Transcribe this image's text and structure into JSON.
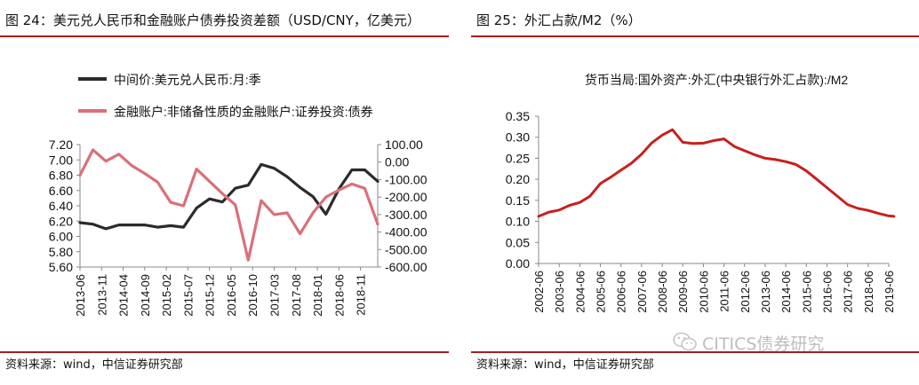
{
  "left_panel": {
    "title": "图 24：美元兑人民币和金融账户债券投资差额（USD/CNY，亿美元）",
    "source": "资料来源：wind，中信证券研究部"
  },
  "right_panel": {
    "title": "图 25：外汇占款/M2（%）",
    "source": "资料来源：wind，中信证券研究部"
  },
  "watermark": {
    "text": "CITICS债券研究",
    "icon": "wechat-icon"
  },
  "colors": {
    "black_series": "#2b2b2b",
    "pink_series": "#d9707a",
    "red_series": "#c8201e",
    "rule": "#a61e1e"
  },
  "chart_data": [
    {
      "type": "line",
      "x_tick_labels": [
        "2013-06",
        "2013-11",
        "2014-04",
        "2014-09",
        "2015-02",
        "2015-07",
        "2015-12",
        "2016-05",
        "2016-10",
        "2017-03",
        "2017-08",
        "2018-01",
        "2018-06",
        "2018-11"
      ],
      "y_left_ticks": [
        "7.20",
        "7.00",
        "6.80",
        "6.60",
        "6.40",
        "6.20",
        "6.00",
        "5.80",
        "5.60"
      ],
      "y_right_ticks": [
        "100.00",
        "0.00",
        "-100.00",
        "-200.00",
        "-300.00",
        "-400.00",
        "-500.00",
        "-600.00"
      ],
      "ylim_left": [
        5.6,
        7.2
      ],
      "ylim_right": [
        -600,
        100
      ],
      "legend_position": "top-left",
      "series": [
        {
          "name": "中间价:美元兑人民币:月:季",
          "axis": "left",
          "color": "#2b2b2b",
          "points": [
            [
              "2013-06",
              6.18
            ],
            [
              "2013-09",
              6.16
            ],
            [
              "2013-12",
              6.1
            ],
            [
              "2014-03",
              6.15
            ],
            [
              "2014-06",
              6.15
            ],
            [
              "2014-09",
              6.15
            ],
            [
              "2014-12",
              6.12
            ],
            [
              "2015-03",
              6.14
            ],
            [
              "2015-06",
              6.12
            ],
            [
              "2015-09",
              6.37
            ],
            [
              "2015-12",
              6.49
            ],
            [
              "2016-03",
              6.45
            ],
            [
              "2016-06",
              6.63
            ],
            [
              "2016-09",
              6.67
            ],
            [
              "2016-12",
              6.94
            ],
            [
              "2017-03",
              6.89
            ],
            [
              "2017-06",
              6.78
            ],
            [
              "2017-09",
              6.64
            ],
            [
              "2017-12",
              6.52
            ],
            [
              "2018-03",
              6.29
            ],
            [
              "2018-06",
              6.62
            ],
            [
              "2018-09",
              6.87
            ],
            [
              "2018-12",
              6.87
            ],
            [
              "2019-03",
              6.72
            ]
          ]
        },
        {
          "name": "金融账户:非储备性质的金融账户:证券投资:债券",
          "axis": "right",
          "color": "#d9707a",
          "points": [
            [
              "2013-06",
              -75
            ],
            [
              "2013-09",
              70
            ],
            [
              "2013-12",
              5
            ],
            [
              "2014-03",
              45
            ],
            [
              "2014-06",
              -20
            ],
            [
              "2014-09",
              -65
            ],
            [
              "2014-12",
              -115
            ],
            [
              "2015-03",
              -230
            ],
            [
              "2015-06",
              -250
            ],
            [
              "2015-09",
              -40
            ],
            [
              "2015-12",
              -110
            ],
            [
              "2016-03",
              -180
            ],
            [
              "2016-06",
              -245
            ],
            [
              "2016-09",
              -560
            ],
            [
              "2016-12",
              -220
            ],
            [
              "2017-03",
              -300
            ],
            [
              "2017-06",
              -290
            ],
            [
              "2017-09",
              -410
            ],
            [
              "2017-12",
              -290
            ],
            [
              "2018-03",
              -200
            ],
            [
              "2018-06",
              -160
            ],
            [
              "2018-09",
              -125
            ],
            [
              "2018-12",
              -150
            ],
            [
              "2019-03",
              -355
            ]
          ]
        }
      ]
    },
    {
      "type": "line",
      "title": "货币当局:国外资产:外汇(中央银行外汇占款):/M2",
      "x_tick_labels": [
        "2002-06",
        "2003-06",
        "2004-06",
        "2005-06",
        "2006-06",
        "2007-06",
        "2008-06",
        "2009-06",
        "2010-06",
        "2011-06",
        "2012-06",
        "2013-06",
        "2014-06",
        "2015-06",
        "2016-06",
        "2017-06",
        "2018-06",
        "2019-06"
      ],
      "y_ticks": [
        "0.35",
        "0.30",
        "0.25",
        "0.20",
        "0.15",
        "0.10",
        "0.05",
        "0.00"
      ],
      "ylim": [
        0,
        0.35
      ],
      "series": [
        {
          "name": "货币当局:国外资产:外汇(中央银行外汇占款):/M2",
          "color": "#c8201e",
          "points": [
            [
              "2002-06",
              0.112
            ],
            [
              "2002-12",
              0.122
            ],
            [
              "2003-06",
              0.127
            ],
            [
              "2003-12",
              0.138
            ],
            [
              "2004-06",
              0.145
            ],
            [
              "2004-12",
              0.16
            ],
            [
              "2005-06",
              0.19
            ],
            [
              "2005-12",
              0.205
            ],
            [
              "2006-06",
              0.222
            ],
            [
              "2006-12",
              0.238
            ],
            [
              "2007-06",
              0.26
            ],
            [
              "2007-12",
              0.287
            ],
            [
              "2008-06",
              0.305
            ],
            [
              "2008-12",
              0.318
            ],
            [
              "2009-06",
              0.288
            ],
            [
              "2009-12",
              0.285
            ],
            [
              "2010-06",
              0.286
            ],
            [
              "2010-12",
              0.292
            ],
            [
              "2011-06",
              0.296
            ],
            [
              "2011-12",
              0.278
            ],
            [
              "2012-06",
              0.268
            ],
            [
              "2012-12",
              0.258
            ],
            [
              "2013-06",
              0.25
            ],
            [
              "2013-12",
              0.247
            ],
            [
              "2014-06",
              0.242
            ],
            [
              "2014-12",
              0.235
            ],
            [
              "2015-06",
              0.22
            ],
            [
              "2015-12",
              0.2
            ],
            [
              "2016-06",
              0.18
            ],
            [
              "2016-12",
              0.16
            ],
            [
              "2017-06",
              0.14
            ],
            [
              "2017-12",
              0.131
            ],
            [
              "2018-06",
              0.126
            ],
            [
              "2018-12",
              0.119
            ],
            [
              "2019-06",
              0.113
            ],
            [
              "2019-09",
              0.112
            ]
          ]
        }
      ]
    }
  ]
}
